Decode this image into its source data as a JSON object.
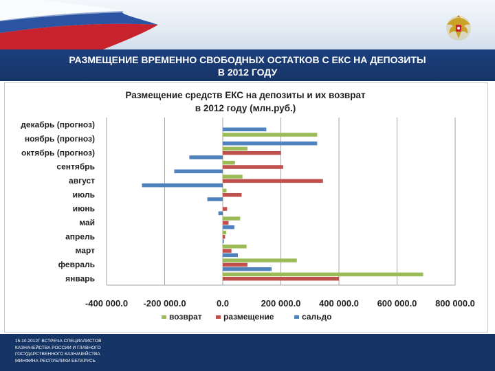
{
  "slide": {
    "title_line1": "РАЗМЕЩЕНИЕ ВРЕМЕННО СВОБОДНЫХ ОСТАТКОВ С ЕКС НА ДЕПОЗИТЫ",
    "title_line2": "В 2012 ГОДУ",
    "footer_line1": "15.10.2012г ВСТРЕЧА СПЕЦИАЛИСТОВ",
    "footer_line2": "КАЗНАЧЕЙСТВА РОССИИ И ГЛАВНОГО",
    "footer_line3": "ГОСУДАРСТВЕННОГО КАЗНАЧЕЙСТВА",
    "footer_line4": "МИНФИНА РЕСПУБЛИКИ БЕЛАРУСЬ",
    "emblem_icon": "double-headed-eagle-icon",
    "colors": {
      "title_bg": "#163567",
      "footer_bg": "#163567"
    }
  },
  "chart_data": {
    "type": "bar",
    "orientation": "horizontal",
    "title_line1": "Размещение средств ЕКС на депозиты и их возврат",
    "title_line2": "в 2012 году (млн.руб.)",
    "categories": [
      "январь",
      "февраль",
      "март",
      "апрель",
      "май",
      "июнь",
      "июль",
      "август",
      "сентябрь",
      "октябрь (прогноз)",
      "ноябрь (прогноз)",
      "декабрь (прогноз)"
    ],
    "series": [
      {
        "name": "возврат",
        "color": "#9bbb59",
        "values": [
          690000,
          255000,
          82000,
          12000,
          60000,
          0,
          13000,
          68000,
          42000,
          85000,
          325000,
          0
        ]
      },
      {
        "name": "размещение",
        "color": "#c0504d",
        "values": [
          400000,
          85000,
          30000,
          8000,
          20000,
          15000,
          65000,
          345000,
          208000,
          200000,
          0,
          0
        ]
      },
      {
        "name": "сальдо",
        "color": "#4f81bd",
        "values": [
          0,
          168000,
          52000,
          4000,
          40000,
          -15000,
          -53000,
          -278000,
          -167000,
          -115000,
          325000,
          150000
        ]
      }
    ],
    "xlim": [
      -400000,
      800000
    ],
    "x_ticks": [
      -400000,
      -200000,
      0,
      200000,
      400000,
      600000,
      800000
    ],
    "x_tick_labels": [
      "-400 000.0",
      "-200 000.0",
      "0.0",
      "200 000.0",
      "400 000.0",
      "600 000.0",
      "800 000.0"
    ],
    "grid": "vertical",
    "legend_position": "bottom"
  }
}
